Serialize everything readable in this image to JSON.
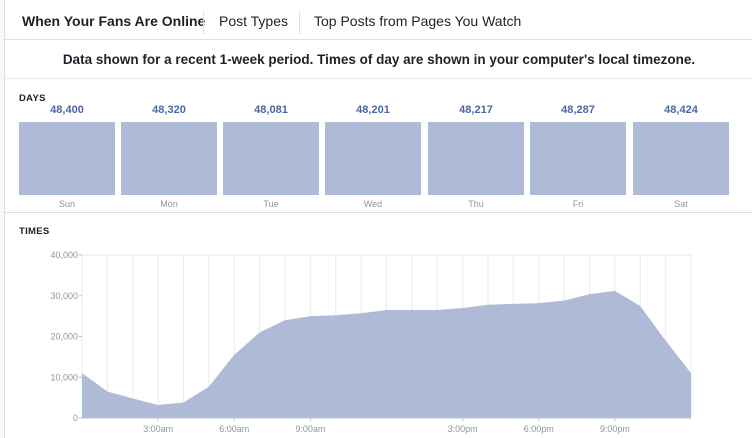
{
  "tabs": [
    {
      "label": "When Your Fans Are Online"
    },
    {
      "label": "Post Types"
    },
    {
      "label": "Top Posts from Pages You Watch"
    }
  ],
  "notice": "Data shown for a recent 1-week period. Times of day are shown in your computer's local timezone.",
  "days_section": {
    "label": "DAYS",
    "items": [
      {
        "day": "Sun",
        "value": "48,400"
      },
      {
        "day": "Mon",
        "value": "48,320"
      },
      {
        "day": "Tue",
        "value": "48,081"
      },
      {
        "day": "Wed",
        "value": "48,201"
      },
      {
        "day": "Thu",
        "value": "48,217"
      },
      {
        "day": "Fri",
        "value": "48,287"
      },
      {
        "day": "Sat",
        "value": "48,424"
      }
    ]
  },
  "times_section": {
    "label": "TIMES"
  },
  "colors": {
    "bar": "#afbad7",
    "area": "#afbad7",
    "accent": "#4b67a1"
  },
  "chart_data": {
    "type": "area",
    "title": "",
    "xlabel": "",
    "ylabel": "",
    "ylim": [
      0,
      40000
    ],
    "yticks": [
      "0",
      "10,000",
      "20,000",
      "30,000",
      "40,000"
    ],
    "xtick_labels": [
      {
        "hour": 3,
        "label": "3:00am"
      },
      {
        "hour": 6,
        "label": "6:00am"
      },
      {
        "hour": 9,
        "label": "9:00am"
      },
      {
        "hour": 15,
        "label": "3:00pm"
      },
      {
        "hour": 18,
        "label": "6:00pm"
      },
      {
        "hour": 21,
        "label": "9:00pm"
      }
    ],
    "x": [
      0,
      1,
      2,
      3,
      4,
      5,
      6,
      7,
      8,
      9,
      10,
      11,
      12,
      13,
      14,
      15,
      16,
      17,
      18,
      19,
      20,
      21,
      22,
      23,
      24
    ],
    "values": [
      11000,
      6500,
      4800,
      3200,
      3800,
      7700,
      15500,
      21000,
      24000,
      25000,
      25200,
      25700,
      26500,
      26500,
      26500,
      27000,
      27800,
      28000,
      28200,
      28800,
      30400,
      31200,
      27500,
      19000,
      11000
    ],
    "grid": true
  }
}
